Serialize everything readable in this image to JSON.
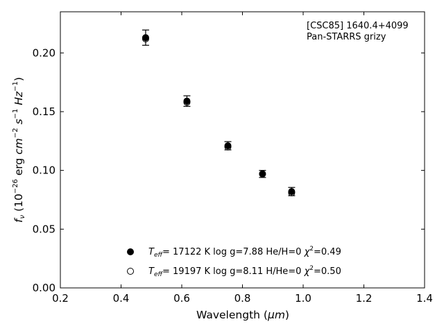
{
  "chart_data": {
    "type": "scatter",
    "xlabel_main": "Wavelength (",
    "xlabel_unit": "μm",
    "xlabel_end": ")",
    "ylabel": {
      "f": "f",
      "nu": "ν",
      "open": " (10",
      "exp": "−26",
      "erg": " erg ",
      "cm": "cm",
      "cm_exp": "−2",
      "s": "s",
      "s_exp": "−1",
      "hz": "Hz",
      "hz_exp": "−1",
      "close": ")"
    },
    "xlim": [
      0.2,
      1.4
    ],
    "ylim": [
      0.0,
      0.235
    ],
    "xticks": [
      "0.2",
      "0.4",
      "0.6",
      "0.8",
      "1.0",
      "1.2",
      "1.4"
    ],
    "yticks": [
      "0.00",
      "0.05",
      "0.10",
      "0.15",
      "0.20"
    ],
    "annotation": [
      "[CSC85] 1640.4+4099",
      "Pan-STARRS grizy"
    ],
    "series": [
      {
        "marker": "filled",
        "x": [
          0.481,
          0.617,
          0.752,
          0.866,
          0.962
        ],
        "y": [
          0.213,
          0.159,
          0.121,
          0.097,
          0.082
        ],
        "yerr": [
          0.0065,
          0.0045,
          0.0035,
          0.003,
          0.0035
        ]
      },
      {
        "marker": "open",
        "x": [
          0.481,
          0.617,
          0.752,
          0.866,
          0.962
        ],
        "y": [
          0.212,
          0.158,
          0.12,
          0.097,
          0.081
        ],
        "yerr": [
          0,
          0,
          0,
          0,
          0
        ]
      }
    ],
    "legend": [
      {
        "marker": "filled",
        "teff_T": "T",
        "teff_sub": "eff",
        "text": "= 17122 K  log g=7.88  He/H=0  ",
        "chi": "χ",
        "chi_exp": "2",
        "chi_val": "=0.49"
      },
      {
        "marker": "open",
        "teff_T": "T",
        "teff_sub": "eff",
        "text": "= 19197 K  log g=8.11  H/He=0  ",
        "chi": "χ",
        "chi_exp": "2",
        "chi_val": "=0.50"
      }
    ]
  }
}
